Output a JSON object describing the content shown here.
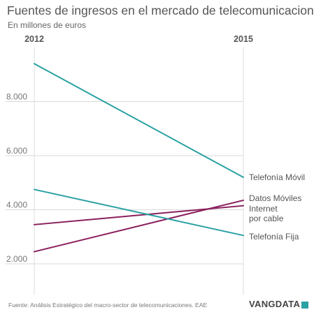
{
  "header": {
    "title": "Fuentes de ingresos en el mercado de telecomunicaciones",
    "subtitle": "En millones de euros"
  },
  "footer": {
    "source": "Fuente: Análisis Estratégico del macro-sector de telecomunicaciones. EAE",
    "brand": "VANGDATA"
  },
  "colors": {
    "teal": "#2aa1a3",
    "purple": "#8a1f5c",
    "grid": "#d9d9d9",
    "axis": "#dddddd"
  },
  "chart_data": {
    "type": "line",
    "title": "Fuentes de ingresos en el mercado de telecomunicaciones",
    "subtitle": "En millones de euros",
    "x": [
      "2012",
      "2015"
    ],
    "ylim": [
      0,
      10000
    ],
    "yticks": [
      2000,
      4000,
      6000,
      8000
    ],
    "ytick_labels": [
      "2.000",
      "4.000",
      "6.000",
      "8.000"
    ],
    "grid": true,
    "series": [
      {
        "name": "Telefonía Móvil",
        "values": [
          9400,
          5200
        ],
        "color": "#2aa1a3",
        "label_lines": [
          "Telefonía Móvil"
        ]
      },
      {
        "name": "Datos Móviles",
        "values": [
          2450,
          4350
        ],
        "color": "#8a1f5c",
        "label_lines": [
          "Datos Móviles"
        ]
      },
      {
        "name": "Internet por cable",
        "values": [
          3450,
          4150
        ],
        "color": "#8a1f5c",
        "label_lines": [
          "Internet",
          "por cable"
        ]
      },
      {
        "name": "Telefonía Fija",
        "values": [
          4750,
          3050
        ],
        "color": "#2aa1a3",
        "label_lines": [
          "Telefonía Fija"
        ]
      }
    ]
  }
}
